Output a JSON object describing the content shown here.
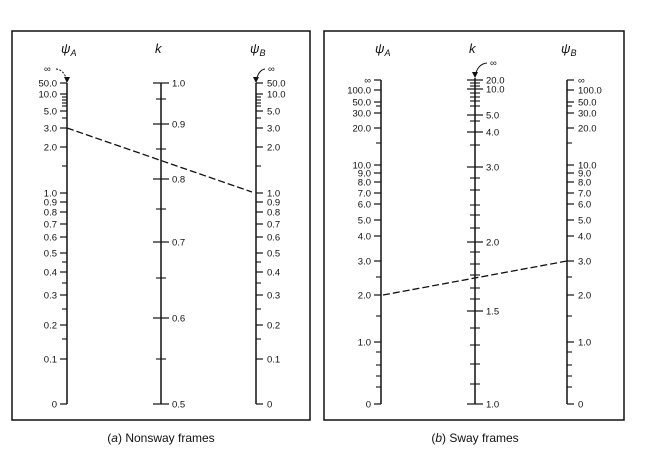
{
  "panels": [
    {
      "caption_letter": "a",
      "caption_text": " Nonsway frames",
      "axes": [
        {
          "symbol": "ψ",
          "subscript": "A",
          "infinity_label": "∞",
          "labels": [
            "50.0",
            "10.0",
            "5.0",
            "3.0",
            "2.0",
            "1.0",
            "0.9",
            "0.8",
            "0.7",
            "0.6",
            "0.5",
            "0.4",
            "0.3",
            "0.2",
            "0.1",
            "0"
          ]
        },
        {
          "symbol": "k",
          "subscript": "",
          "labels": [
            "1.0",
            "0.9",
            "0.8",
            "0.7",
            "0.6",
            "0.5"
          ]
        },
        {
          "symbol": "ψ",
          "subscript": "B",
          "infinity_label": "∞",
          "labels": [
            "50.0",
            "10.0",
            "5.0",
            "3.0",
            "2.0",
            "1.0",
            "0.9",
            "0.8",
            "0.7",
            "0.6",
            "0.5",
            "0.4",
            "0.3",
            "0.2",
            "0.1",
            "0"
          ]
        }
      ],
      "example_line": {
        "psi_A": 3.0,
        "psi_B": 1.0,
        "k": 0.82
      }
    },
    {
      "caption_letter": "b",
      "caption_text": " Sway frames",
      "axes": [
        {
          "symbol": "ψ",
          "subscript": "A",
          "labels": [
            "∞",
            "100.0",
            "50.0",
            "30.0",
            "20.0",
            "10.0",
            "9.0",
            "8.0",
            "7.0",
            "6.0",
            "5.0",
            "4.0",
            "3.0",
            "2.0",
            "1.0",
            "0"
          ]
        },
        {
          "symbol": "k",
          "subscript": "",
          "infinity_label": "∞",
          "labels": [
            "20.0",
            "10.0",
            "5.0",
            "4.0",
            "3.0",
            "2.0",
            "1.5",
            "1.0"
          ]
        },
        {
          "symbol": "ψ",
          "subscript": "B",
          "labels": [
            "∞",
            "100.0",
            "50.0",
            "30.0",
            "20.0",
            "10.0",
            "9.0",
            "8.0",
            "7.0",
            "6.0",
            "5.0",
            "4.0",
            "3.0",
            "2.0",
            "1.0",
            "0"
          ]
        }
      ],
      "example_line": {
        "psi_A": 2.0,
        "psi_B": 3.0,
        "k": 1.75
      }
    }
  ]
}
